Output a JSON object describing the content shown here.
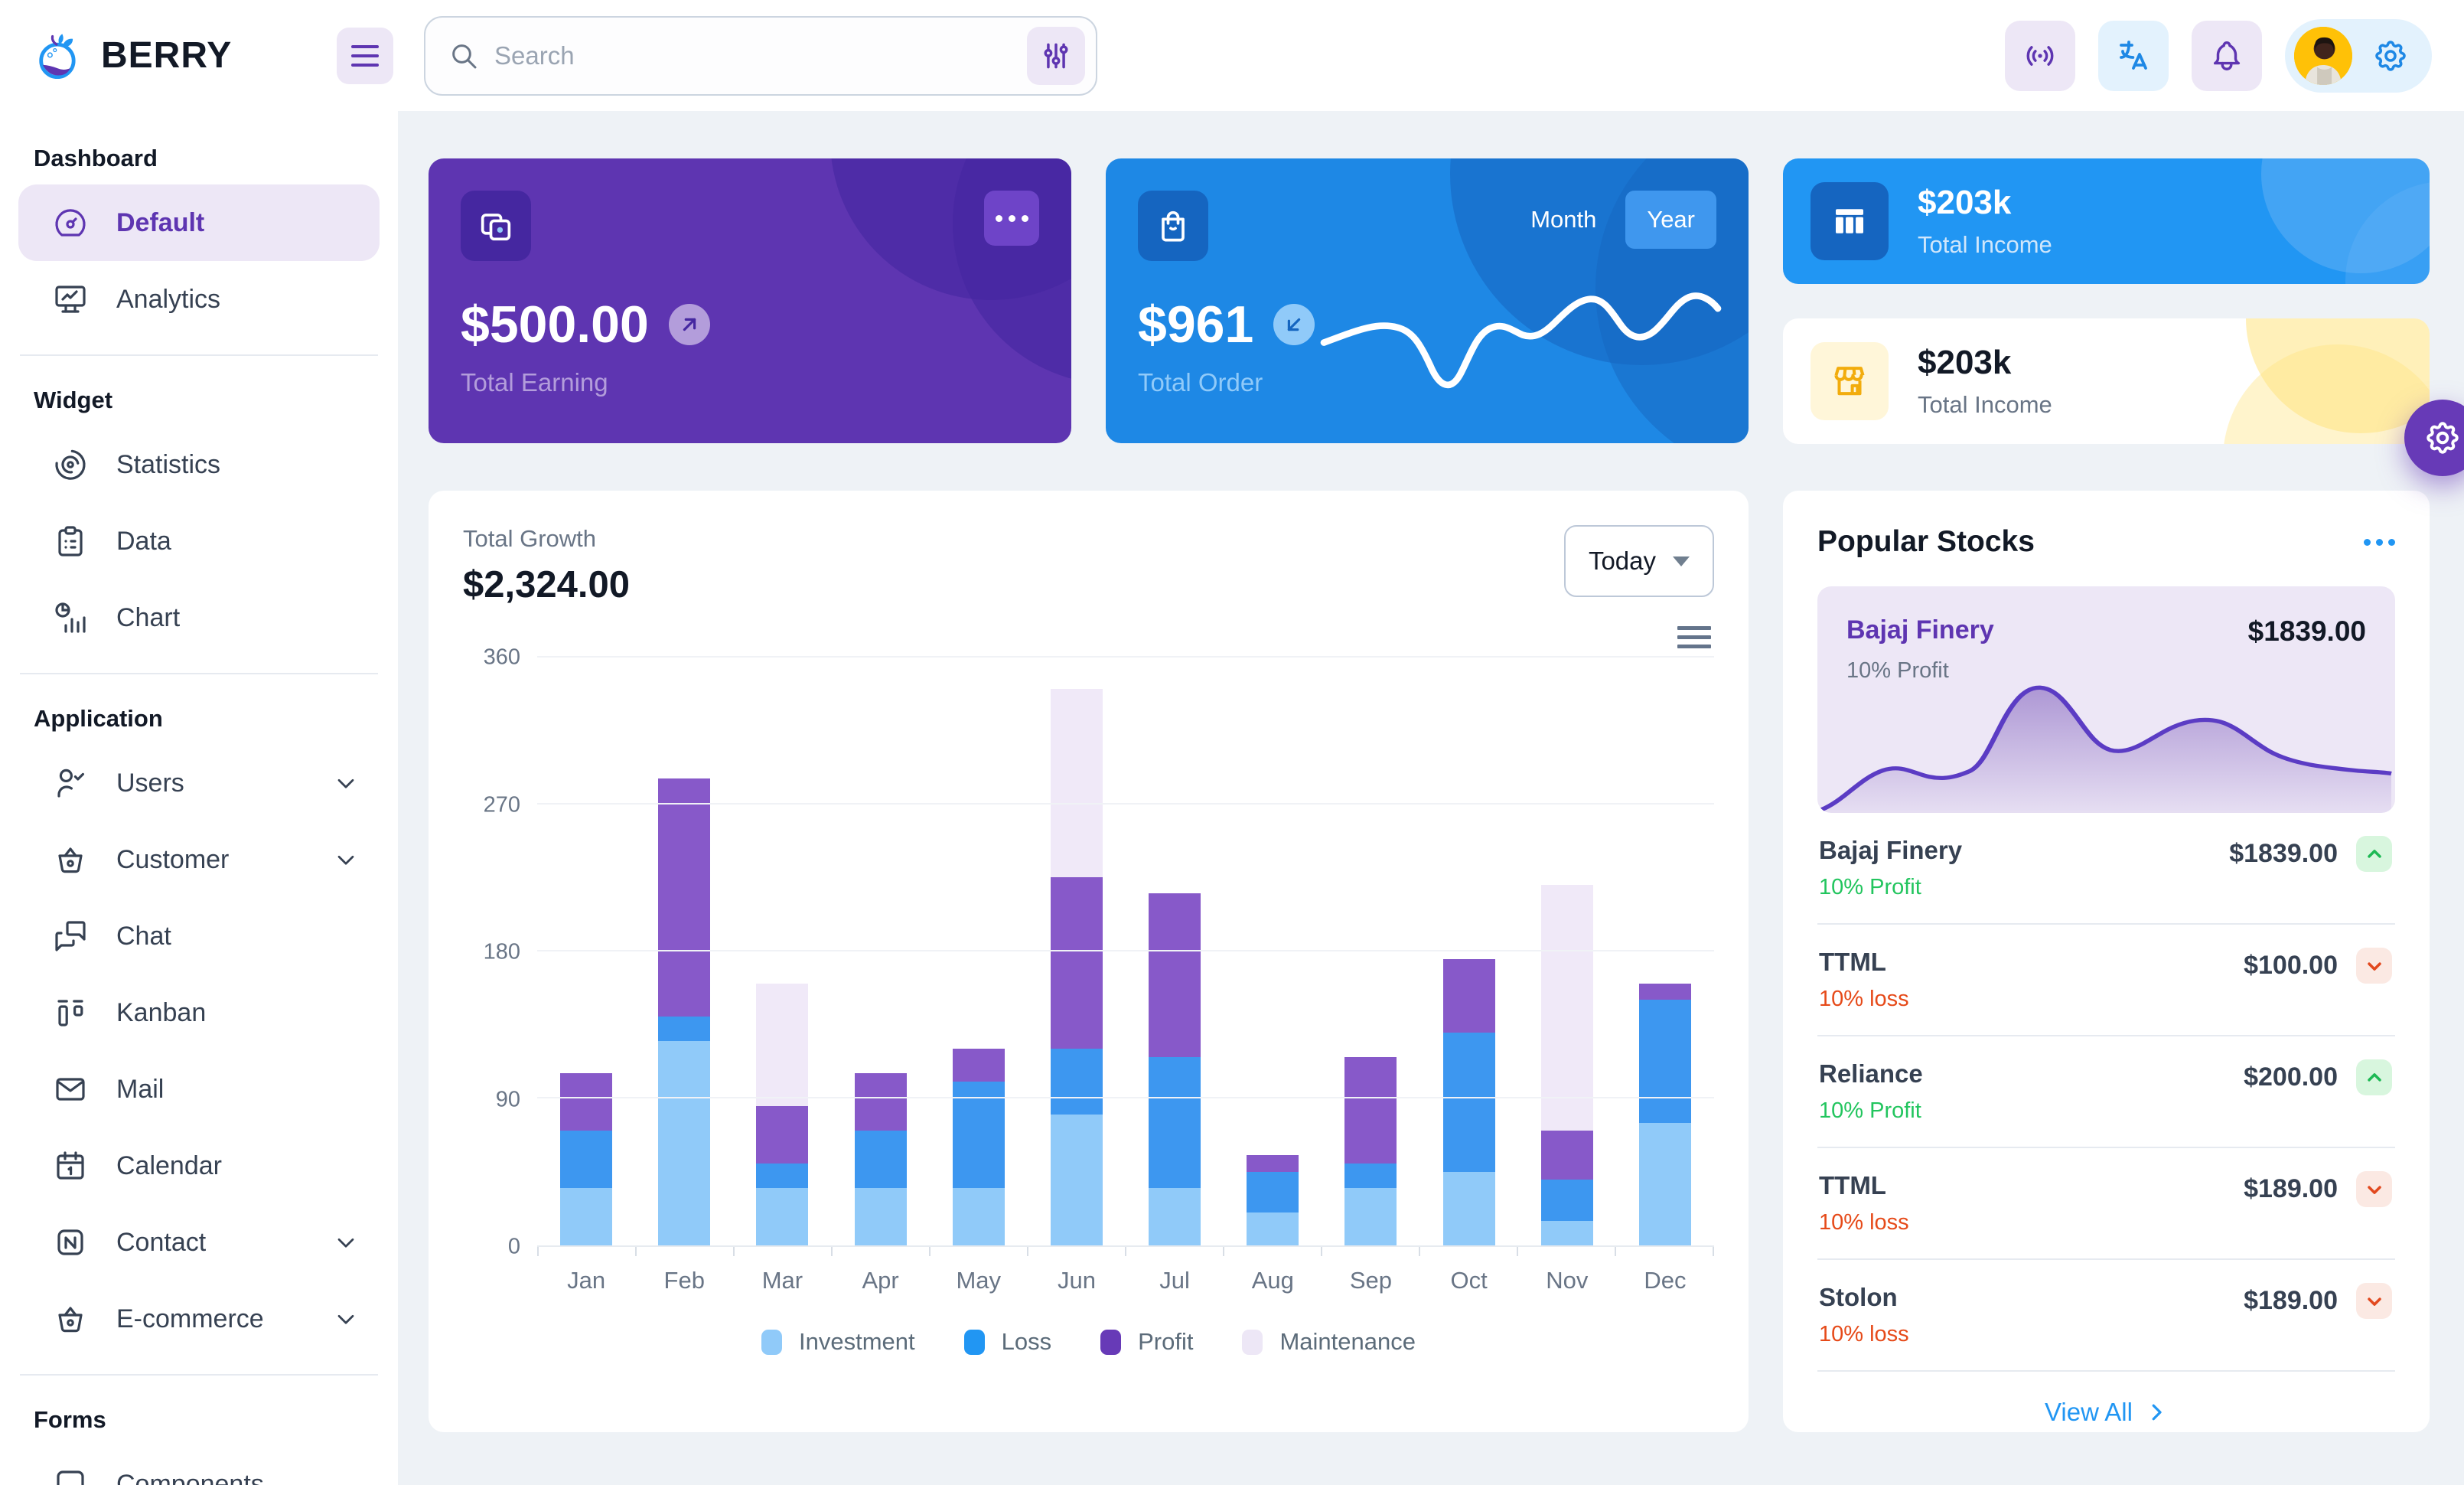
{
  "brand": {
    "name": "BERRY"
  },
  "topbar": {
    "search_placeholder": "Search"
  },
  "sidebar": {
    "sections": [
      {
        "caption": "Dashboard",
        "items": [
          {
            "label": "Default",
            "icon": "dashboard",
            "selected": true
          },
          {
            "label": "Analytics",
            "icon": "analytics"
          }
        ]
      },
      {
        "caption": "Widget",
        "items": [
          {
            "label": "Statistics",
            "icon": "statistics"
          },
          {
            "label": "Data",
            "icon": "data"
          },
          {
            "label": "Chart",
            "icon": "chart"
          }
        ]
      },
      {
        "caption": "Application",
        "items": [
          {
            "label": "Users",
            "icon": "users",
            "expandable": true
          },
          {
            "label": "Customer",
            "icon": "customer",
            "expandable": true
          },
          {
            "label": "Chat",
            "icon": "chat"
          },
          {
            "label": "Kanban",
            "icon": "kanban"
          },
          {
            "label": "Mail",
            "icon": "mail"
          },
          {
            "label": "Calendar",
            "icon": "calendar"
          },
          {
            "label": "Contact",
            "icon": "contact",
            "expandable": true
          },
          {
            "label": "E-commerce",
            "icon": "ecommerce",
            "expandable": true
          }
        ]
      },
      {
        "caption": "Forms",
        "items": [
          {
            "label": "Components",
            "icon": "components",
            "partial": true
          }
        ]
      }
    ]
  },
  "cards": {
    "earning": {
      "value": "$500.00",
      "label": "Total Earning"
    },
    "order": {
      "value": "$961",
      "label": "Total Order",
      "toggle": [
        "Month",
        "Year"
      ],
      "selected_toggle": "Year"
    },
    "income_dark": {
      "value": "$203k",
      "label": "Total Income"
    },
    "income_light": {
      "value": "$203k",
      "label": "Total Income"
    }
  },
  "growth": {
    "label": "Total Growth",
    "value": "$2,324.00",
    "period": "Today"
  },
  "chart_data": {
    "type": "bar",
    "stacked": true,
    "title": "Total Growth",
    "categories": [
      "Jan",
      "Feb",
      "Mar",
      "Apr",
      "May",
      "Jun",
      "Jul",
      "Aug",
      "Sep",
      "Oct",
      "Nov",
      "Dec"
    ],
    "series": [
      {
        "name": "Investment",
        "color": "#90caf9",
        "legend_color": "#90caf9",
        "values": [
          35,
          125,
          35,
          35,
          35,
          80,
          35,
          20,
          35,
          45,
          15,
          75
        ]
      },
      {
        "name": "Loss",
        "color": "#3d97f0",
        "legend_color": "#2196f3",
        "values": [
          35,
          15,
          15,
          35,
          65,
          40,
          80,
          25,
          15,
          85,
          25,
          75
        ]
      },
      {
        "name": "Profit",
        "color": "#8759c9",
        "legend_color": "#673ab7",
        "values": [
          35,
          145,
          35,
          35,
          20,
          105,
          100,
          10,
          65,
          45,
          30,
          10
        ]
      },
      {
        "name": "Maintenance",
        "color": "#f0e9f8",
        "legend_color": "#ede7f6",
        "values": [
          0,
          0,
          75,
          0,
          0,
          115,
          0,
          0,
          0,
          0,
          150,
          0
        ]
      }
    ],
    "yticks": [
      0,
      90,
      180,
      270,
      360
    ],
    "ylim": [
      0,
      360
    ],
    "grid": true,
    "legend_position": "bottom"
  },
  "stocks": {
    "title": "Popular Stocks",
    "featured": {
      "name": "Bajaj Finery",
      "sub": "10% Profit",
      "price": "$1839.00"
    },
    "items": [
      {
        "name": "Bajaj Finery",
        "sub": "10% Profit",
        "price": "$1839.00",
        "trend": "up"
      },
      {
        "name": "TTML",
        "sub": "10% loss",
        "price": "$100.00",
        "trend": "down"
      },
      {
        "name": "Reliance",
        "sub": "10% Profit",
        "price": "$200.00",
        "trend": "up"
      },
      {
        "name": "TTML",
        "sub": "10% loss",
        "price": "$189.00",
        "trend": "down"
      },
      {
        "name": "Stolon",
        "sub": "10% loss",
        "price": "$189.00",
        "trend": "down"
      }
    ],
    "view_all": "View All"
  },
  "colors": {
    "primary": "#2196f3",
    "primary_dark": "#1565c0",
    "primary_light": "#e3f2fd",
    "secondary": "#673ab7",
    "secondary_800": "#5e35b1",
    "secondary_dark": "#4527a0",
    "secondary_light": "#ede7f6",
    "success": "#22c55e",
    "error": "#e64a19",
    "warning": "#ffc107",
    "text_dark": "#121926",
    "text_gray": "#697586",
    "bg": "#eef2f6"
  }
}
